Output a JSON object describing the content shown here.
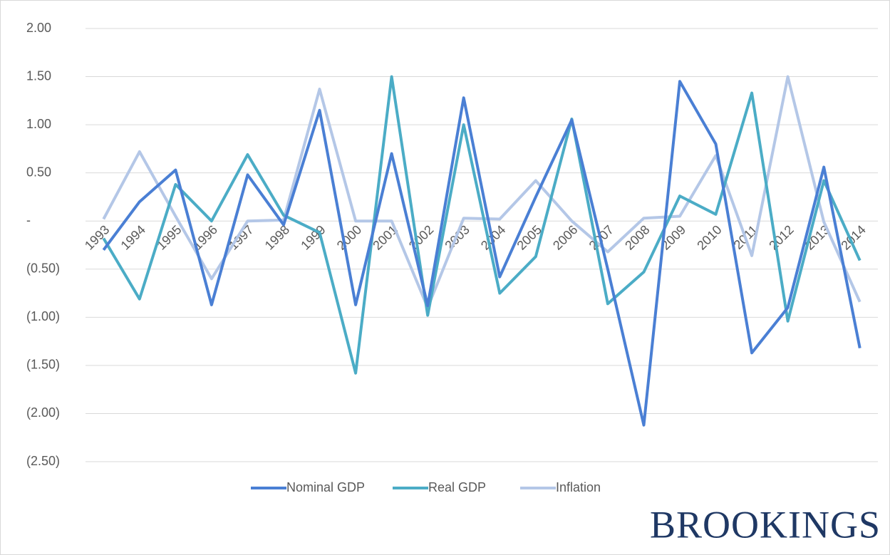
{
  "chart_data": {
    "type": "line",
    "logo": "BROOKINGS",
    "categories": [
      "1993",
      "1994",
      "1995",
      "1996",
      "1997",
      "1998",
      "1999",
      "2000",
      "2001",
      "2002",
      "2003",
      "2004",
      "2005",
      "2006",
      "2007",
      "2008",
      "2009",
      "2010",
      "2011",
      "2012",
      "2013",
      "2014"
    ],
    "series": [
      {
        "name": "Nominal GDP",
        "color": "#4a7fd4",
        "values": [
          -0.3,
          0.2,
          0.53,
          -0.87,
          0.48,
          -0.04,
          1.15,
          -0.87,
          0.7,
          -0.88,
          1.28,
          -0.58,
          0.25,
          1.05,
          -0.5,
          -2.12,
          1.45,
          0.8,
          -1.37,
          -0.9,
          0.56,
          -1.32
        ]
      },
      {
        "name": "Real GDP",
        "color": "#4bacc6",
        "values": [
          -0.18,
          -0.81,
          0.38,
          0.0,
          0.69,
          0.06,
          -0.12,
          -1.58,
          1.5,
          -0.98,
          1.0,
          -0.75,
          -0.37,
          1.06,
          -0.86,
          -0.53,
          0.26,
          0.07,
          1.33,
          -1.04,
          0.42,
          -0.41
        ]
      },
      {
        "name": "Inflation",
        "color": "#b4c7e7",
        "values": [
          0.02,
          0.72,
          0.05,
          -0.6,
          0.0,
          0.01,
          1.37,
          0.0,
          0.0,
          -0.9,
          0.03,
          0.02,
          0.42,
          0.0,
          -0.32,
          0.03,
          0.05,
          0.68,
          -0.36,
          1.5,
          -0.01,
          -0.84
        ]
      }
    ],
    "ylim": [
      -2.5,
      2.0
    ],
    "yticks": [
      {
        "value": 2,
        "label": "2.00"
      },
      {
        "value": 1.5,
        "label": "1.50"
      },
      {
        "value": 1,
        "label": "1.00"
      },
      {
        "value": 0.5,
        "label": "0.50"
      },
      {
        "value": 0,
        "label": "-"
      },
      {
        "value": -0.5,
        "label": "(0.50)"
      },
      {
        "value": -1,
        "label": "(1.00)"
      },
      {
        "value": -1.5,
        "label": "(1.50)"
      },
      {
        "value": -2,
        "label": "(2.00)"
      },
      {
        "value": -2.5,
        "label": "(2.50)"
      }
    ],
    "grid": true,
    "legend": "bottom"
  }
}
